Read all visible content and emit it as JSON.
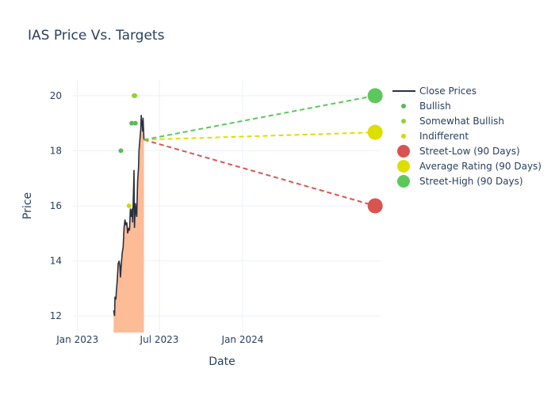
{
  "chart_data": {
    "type": "line",
    "title": "IAS Price Vs. Targets",
    "xlabel": "Date",
    "ylabel": "Price",
    "xlim": [
      "2022-12-01",
      "2024-11-01"
    ],
    "ylim": [
      11.4,
      20.6
    ],
    "grid": true,
    "legend_position": "right",
    "x_ticks": [
      {
        "date": "2023-01-01",
        "label": "Jan 2023"
      },
      {
        "date": "2023-07-01",
        "label": "Jul 2023"
      },
      {
        "date": "2024-01-01",
        "label": "Jan 2024"
      }
    ],
    "y_ticks": [
      12,
      14,
      16,
      18,
      20
    ],
    "series": [
      {
        "name": "Close Prices",
        "kind": "line-filled",
        "color": "#2a3040",
        "fill_color": "#fdbb96",
        "points": [
          [
            "2023-03-22",
            12.2
          ],
          [
            "2023-03-23",
            12.1
          ],
          [
            "2023-03-24",
            12.0
          ],
          [
            "2023-03-25",
            12.7
          ],
          [
            "2023-03-27",
            12.6
          ],
          [
            "2023-03-28",
            12.9
          ],
          [
            "2023-03-30",
            13.3
          ],
          [
            "2023-04-01",
            13.9
          ],
          [
            "2023-04-03",
            14.0
          ],
          [
            "2023-04-05",
            13.8
          ],
          [
            "2023-04-06",
            13.4
          ],
          [
            "2023-04-08",
            13.9
          ],
          [
            "2023-04-10",
            14.3
          ],
          [
            "2023-04-12",
            14.5
          ],
          [
            "2023-04-14",
            15.2
          ],
          [
            "2023-04-16",
            15.5
          ],
          [
            "2023-04-18",
            15.3
          ],
          [
            "2023-04-20",
            15.4
          ],
          [
            "2023-04-22",
            15.0
          ],
          [
            "2023-04-24",
            15.2
          ],
          [
            "2023-04-26",
            15.1
          ],
          [
            "2023-04-28",
            15.9
          ],
          [
            "2023-04-30",
            15.6
          ],
          [
            "2023-05-02",
            15.9
          ],
          [
            "2023-05-03",
            15.4
          ],
          [
            "2023-05-05",
            16.6
          ],
          [
            "2023-05-06",
            17.3
          ],
          [
            "2023-05-07",
            15.2
          ],
          [
            "2023-05-09",
            16.1
          ],
          [
            "2023-05-11",
            15.7
          ],
          [
            "2023-05-12",
            15.6
          ],
          [
            "2023-05-14",
            16.9
          ],
          [
            "2023-05-16",
            17.4
          ],
          [
            "2023-05-17",
            18.0
          ],
          [
            "2023-05-19",
            18.4
          ],
          [
            "2023-05-21",
            18.8
          ],
          [
            "2023-05-22",
            19.3
          ],
          [
            "2023-05-23",
            18.9
          ],
          [
            "2023-05-24",
            19.1
          ],
          [
            "2023-05-25",
            18.7
          ],
          [
            "2023-05-26",
            19.2
          ],
          [
            "2023-05-28",
            18.4
          ]
        ]
      },
      {
        "name": "Bullish",
        "kind": "markers",
        "color": "#5cb85c",
        "points": [
          [
            "2023-04-07",
            18.0
          ],
          [
            "2023-05-01",
            19.0
          ],
          [
            "2023-05-09",
            19.0
          ]
        ]
      },
      {
        "name": "Somewhat Bullish",
        "kind": "markers",
        "color": "#8fd13a",
        "points": [
          [
            "2023-05-06",
            20.0
          ],
          [
            "2023-05-08",
            20.0
          ]
        ]
      },
      {
        "name": "Indifferent",
        "kind": "markers",
        "color": "#d8d800",
        "points": [
          [
            "2023-04-25",
            16.0
          ]
        ]
      },
      {
        "name": "Street-Low (90 Days)",
        "kind": "target",
        "color": "#d9534f",
        "start": [
          "2023-05-28",
          18.4
        ],
        "end": [
          "2024-10-20",
          16.0
        ]
      },
      {
        "name": "Average Rating (90 Days)",
        "kind": "target",
        "color": "#dede00",
        "start": [
          "2023-05-28",
          18.4
        ],
        "end": [
          "2024-10-20",
          18.67
        ]
      },
      {
        "name": "Street-High (90 Days)",
        "kind": "target",
        "color": "#5cc85c",
        "start": [
          "2023-05-28",
          18.4
        ],
        "end": [
          "2024-10-20",
          20.0
        ]
      }
    ]
  }
}
